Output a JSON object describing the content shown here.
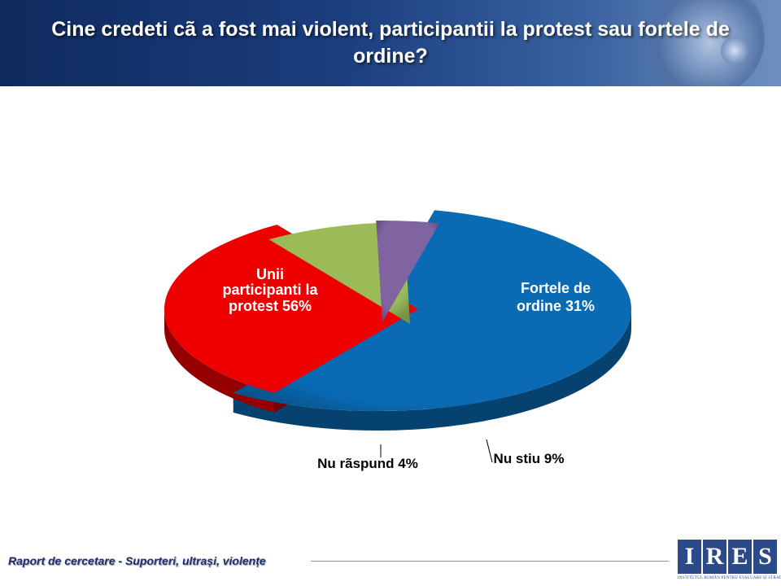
{
  "header": {
    "title": "Cine credeti cã a fost mai violent, participantii la protest sau fortele de ordine?"
  },
  "chart_data": {
    "type": "pie",
    "title": "Cine credeti cã a fost mai violent, participantii la protest sau fortele de ordine?",
    "slices": [
      {
        "label": "Unii participanti la protest",
        "value": 56,
        "display": "Unii participanti la protest 56%",
        "color": "#0a6ab4"
      },
      {
        "label": "Fortele de ordine",
        "value": 31,
        "display": "Fortele de ordine 31%",
        "color": "#ee0000"
      },
      {
        "label": "Nu stiu",
        "value": 9,
        "display": "Nu stiu 9%",
        "color": "#9bbb59"
      },
      {
        "label": "Nu rãspund",
        "value": 4,
        "display": "Nu rãspund 4%",
        "color": "#8064a2"
      }
    ],
    "unit": "%",
    "legend": "none"
  },
  "footer": {
    "text": "Raport de cercetare - Suporteri, ultrași, violențe"
  },
  "logo": {
    "letters": [
      "I",
      "R",
      "E",
      "S"
    ],
    "tagline": "INSTITUTUL ROMÂN PENTRU EVALUARE ȘI STRATEGIE",
    "color": "#2a4a8a"
  }
}
